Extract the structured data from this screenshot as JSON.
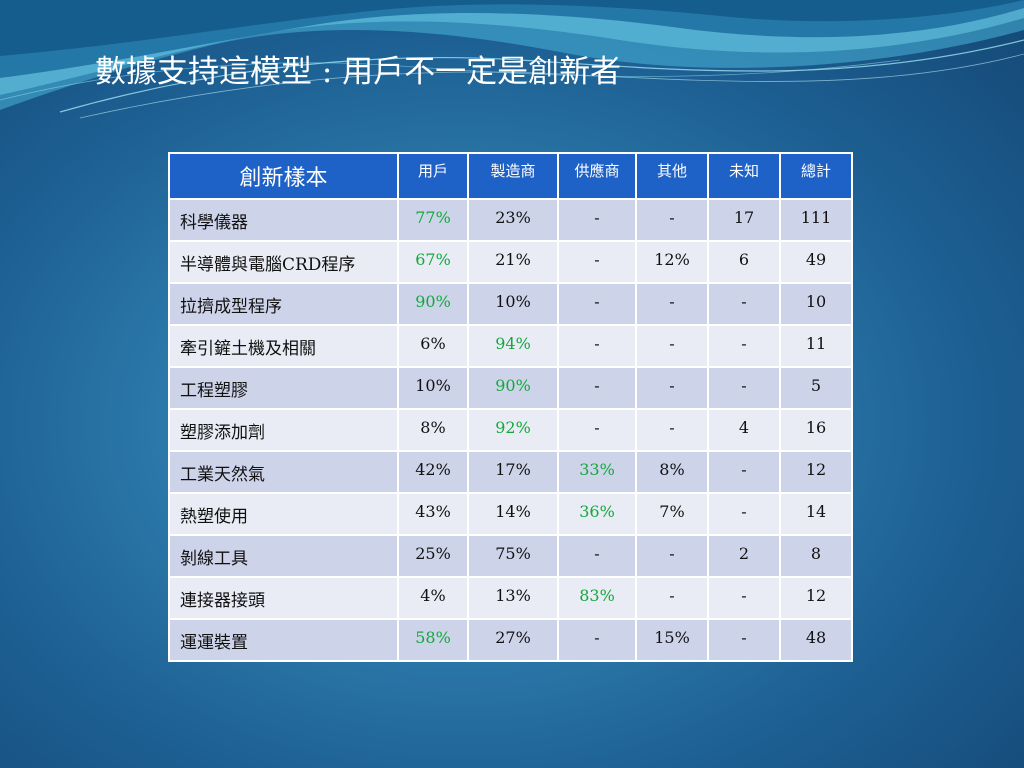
{
  "slide": {
    "title": "數據支持這模型 : 用戶不一定是創新者"
  },
  "colors": {
    "background": "#2f7fb0",
    "header": "#1e62c8",
    "row_odd": "#cdd4ea",
    "row_even": "#e9ecf5",
    "highlight": "#14a83c"
  },
  "table": {
    "headers": [
      "創新樣本",
      "用戶",
      "製造商",
      "供應商",
      "其他",
      "未知",
      "總計"
    ],
    "rows": [
      {
        "cells": [
          "科學儀器",
          "77%",
          "23%",
          "-",
          "-",
          "17",
          "111"
        ],
        "highlight": 1
      },
      {
        "cells": [
          "半導體與電腦CRD程序",
          "67%",
          "21%",
          "-",
          "12%",
          "6",
          "49"
        ],
        "highlight": 1
      },
      {
        "cells": [
          "拉擠成型程序",
          "90%",
          "10%",
          "-",
          "-",
          "-",
          "10"
        ],
        "highlight": 1
      },
      {
        "cells": [
          "牽引鏟土機及相關",
          "6%",
          "94%",
          "-",
          "-",
          "-",
          "11"
        ],
        "highlight": 2
      },
      {
        "cells": [
          "工程塑膠",
          "10%",
          "90%",
          "-",
          "-",
          "-",
          "5"
        ],
        "highlight": 2
      },
      {
        "cells": [
          "塑膠添加劑",
          "8%",
          "92%",
          "-",
          "-",
          "4",
          "16"
        ],
        "highlight": 2
      },
      {
        "cells": [
          "工業天然氣",
          "42%",
          "17%",
          "33%",
          "8%",
          "-",
          "12"
        ],
        "highlight": 3
      },
      {
        "cells": [
          "熱塑使用",
          "43%",
          "14%",
          "36%",
          "7%",
          "-",
          "14"
        ],
        "highlight": 3
      },
      {
        "cells": [
          "剝線工具",
          "25%",
          "75%",
          "-",
          "-",
          "2",
          "8"
        ],
        "highlight": -1
      },
      {
        "cells": [
          "連接器接頭",
          "4%",
          "13%",
          "83%",
          "-",
          "-",
          "12"
        ],
        "highlight": 3
      },
      {
        "cells": [
          "運運裝置",
          "58%",
          "27%",
          "-",
          "15%",
          "-",
          "48"
        ],
        "highlight": 1
      }
    ]
  }
}
